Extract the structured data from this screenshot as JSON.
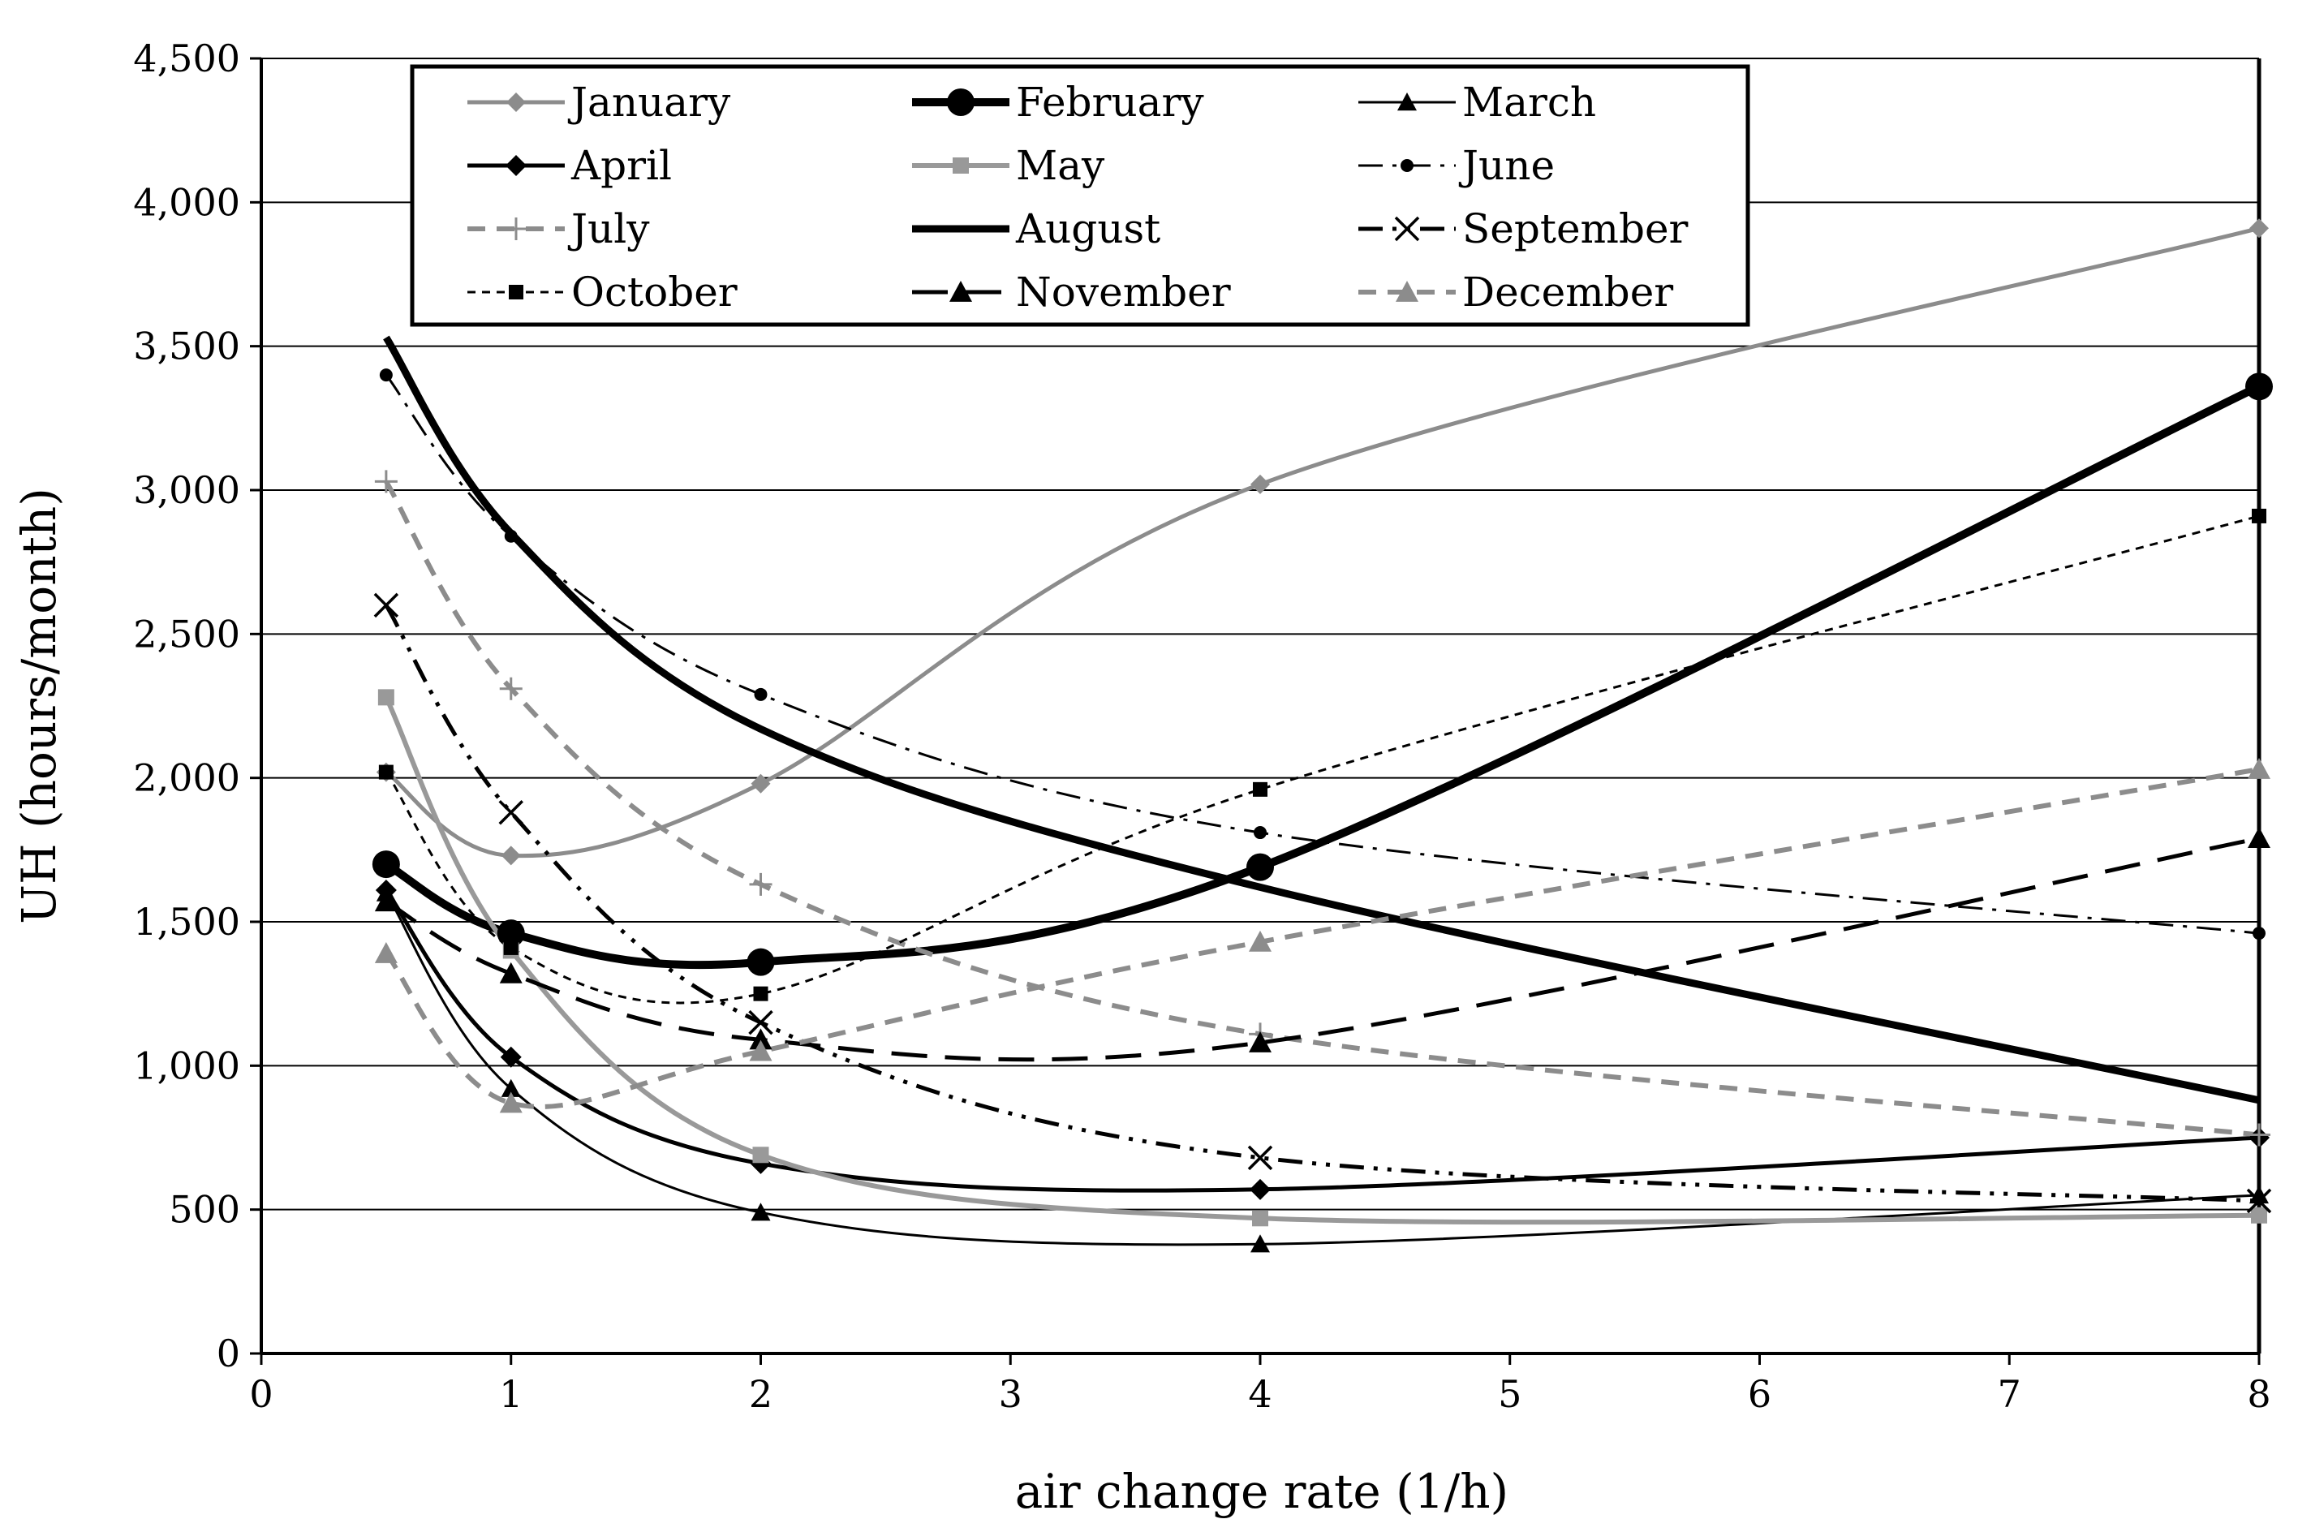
{
  "chart_data": {
    "type": "line",
    "title": "",
    "xlabel": "air change rate (1/h)",
    "ylabel": "UH (hours/month)",
    "xlim": [
      0,
      8
    ],
    "ylim": [
      0,
      4500
    ],
    "grid": true,
    "legend_position": "top",
    "x_ticks": [
      0,
      1,
      2,
      3,
      4,
      5,
      6,
      7,
      8
    ],
    "x_tick_labels": [
      "0",
      "1",
      "2",
      "3",
      "4",
      "5",
      "6",
      "7",
      "8"
    ],
    "y_ticks": [
      0,
      500,
      1000,
      1500,
      2000,
      2500,
      3000,
      3500,
      4000,
      4500
    ],
    "y_tick_labels": [
      "0",
      "500",
      "1,000",
      "1,500",
      "2,000",
      "2,500",
      "3,000",
      "3,500",
      "4,000",
      "4,500"
    ],
    "x": [
      0.5,
      1,
      2,
      4,
      8
    ],
    "series": [
      {
        "name": "January",
        "values": [
          2020,
          1730,
          1980,
          3020,
          3910
        ],
        "color": "#8c8c8c",
        "dash": "solid",
        "width": 5,
        "marker": "diamond",
        "marker_size": 12
      },
      {
        "name": "February",
        "values": [
          1700,
          1460,
          1360,
          1690,
          3360
        ],
        "color": "#000000",
        "dash": "solid",
        "width": 10,
        "marker": "circle",
        "marker_size": 17
      },
      {
        "name": "March",
        "values": [
          1600,
          920,
          490,
          380,
          550
        ],
        "color": "#000000",
        "dash": "solid",
        "width": 3,
        "marker": "triangle",
        "marker_size": 12
      },
      {
        "name": "April",
        "values": [
          1610,
          1030,
          660,
          570,
          750
        ],
        "color": "#000000",
        "dash": "solid",
        "width": 5,
        "marker": "diamond",
        "marker_size": 13
      },
      {
        "name": "May",
        "values": [
          2280,
          1400,
          690,
          470,
          480
        ],
        "color": "#999999",
        "dash": "solid",
        "width": 6,
        "marker": "square",
        "marker_size": 10
      },
      {
        "name": "June",
        "values": [
          3400,
          2840,
          2290,
          1810,
          1460
        ],
        "color": "#000000",
        "dash": "dashdot",
        "width": 3,
        "marker": "dot",
        "marker_size": 8
      },
      {
        "name": "July",
        "values": [
          3030,
          2310,
          1630,
          1110,
          760
        ],
        "color": "#8c8c8c",
        "dash": "dash",
        "width": 6,
        "marker": "plus",
        "marker_size": 14
      },
      {
        "name": "August",
        "values": [
          3530,
          2850,
          2170,
          1620,
          880
        ],
        "color": "#000000",
        "dash": "solid",
        "width": 9,
        "marker": "none",
        "marker_size": 0
      },
      {
        "name": "September",
        "values": [
          2600,
          1880,
          1150,
          680,
          530
        ],
        "color": "#000000",
        "dash": "dashdotdot",
        "width": 5,
        "marker": "x",
        "marker_size": 14
      },
      {
        "name": "October",
        "values": [
          2020,
          1410,
          1250,
          1960,
          2910
        ],
        "color": "#000000",
        "dash": "shortdash",
        "width": 3,
        "marker": "square",
        "marker_size": 9
      },
      {
        "name": "November",
        "values": [
          1570,
          1320,
          1090,
          1080,
          1790
        ],
        "color": "#000000",
        "dash": "longdash",
        "width": 5,
        "marker": "triangle",
        "marker_size": 14
      },
      {
        "name": "December",
        "values": [
          1390,
          870,
          1050,
          1430,
          2030
        ],
        "color": "#8c8c8c",
        "dash": "dash",
        "width": 6,
        "marker": "triangle",
        "marker_size": 14
      }
    ]
  }
}
